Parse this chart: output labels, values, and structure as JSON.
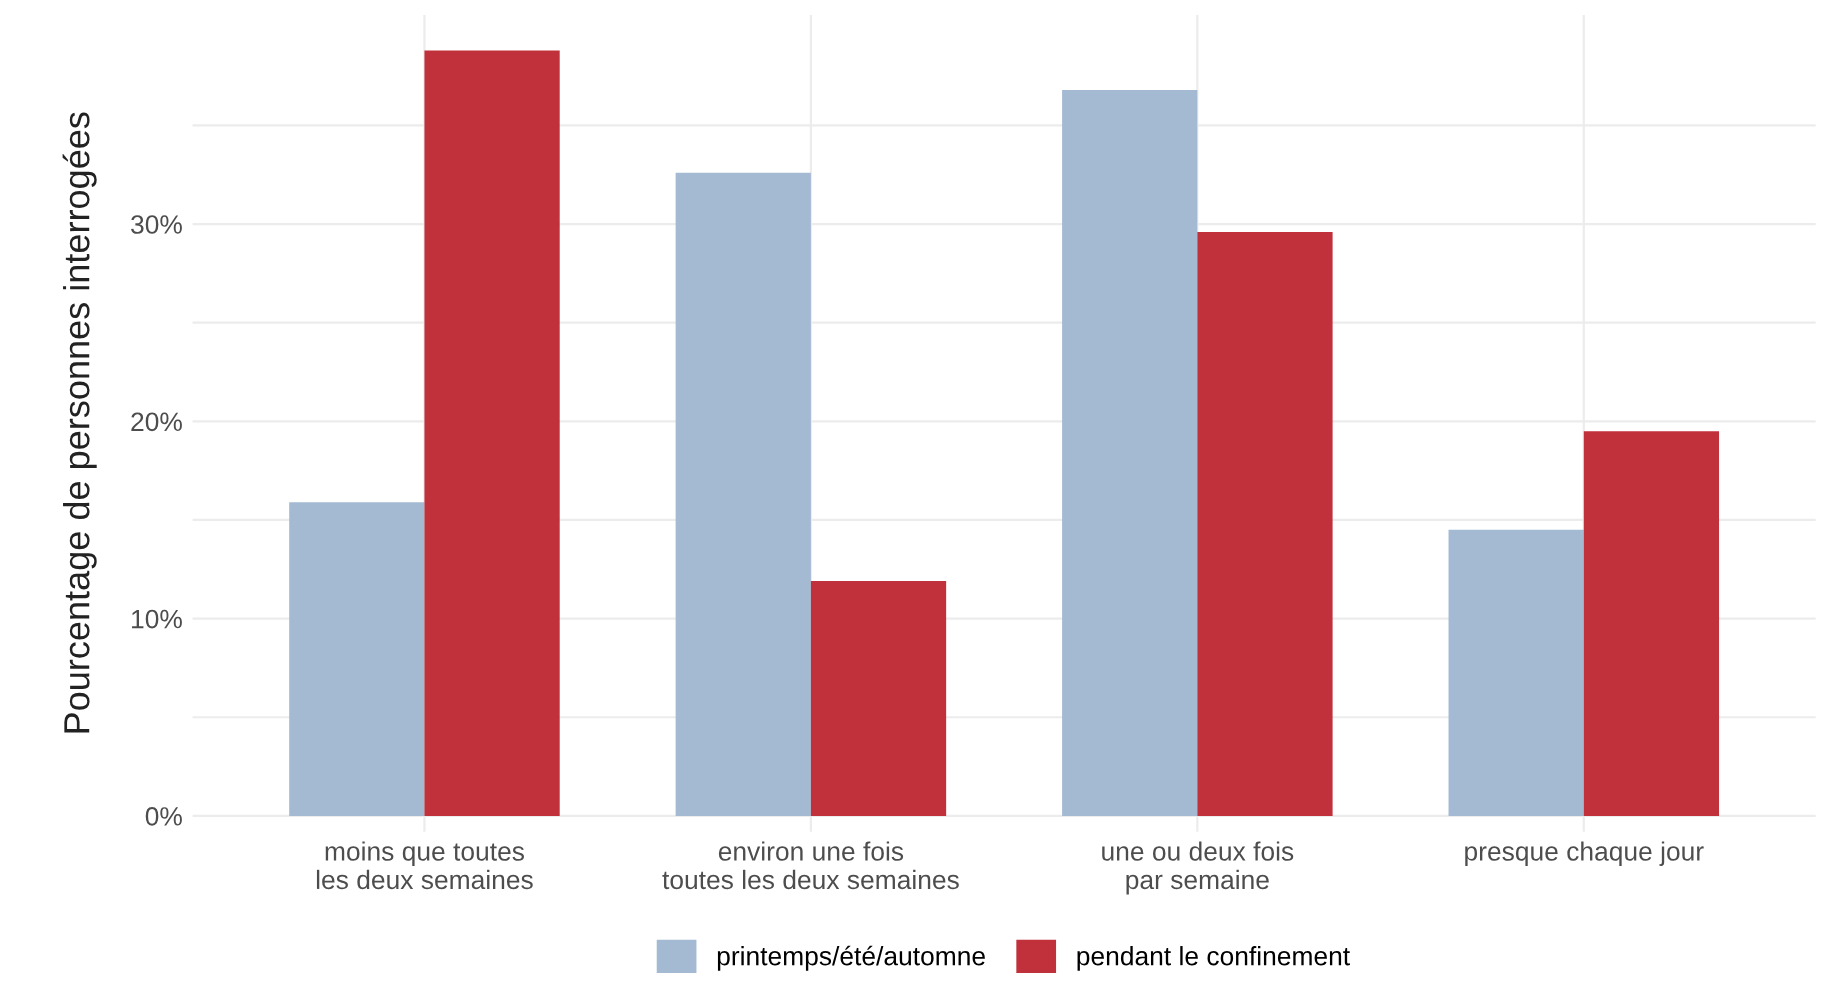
{
  "chart_data": {
    "type": "bar",
    "ylabel": "Pourcentage de personnes interrogées",
    "categories": [
      "moins que toutes\nles deux semaines",
      "environ une fois\ntoutes les deux semaines",
      "une ou deux fois\npar semaine",
      "presque chaque jour"
    ],
    "series": [
      {
        "name": "printemps/été/automne",
        "color": "#a4bad3",
        "values": [
          15.9,
          32.6,
          36.8,
          14.5
        ]
      },
      {
        "name": "pendant le confinement",
        "color": "#c0313b",
        "values": [
          38.8,
          11.9,
          29.6,
          19.5
        ]
      }
    ],
    "ylim": [
      -0.8,
      40.6
    ],
    "yticks": [
      {
        "value": 0,
        "label": "0%"
      },
      {
        "value": 5,
        "label": null
      },
      {
        "value": 10,
        "label": "10%"
      },
      {
        "value": 15,
        "label": null
      },
      {
        "value": 20,
        "label": "20%"
      },
      {
        "value": 25,
        "label": null
      },
      {
        "value": 30,
        "label": "30%"
      },
      {
        "value": 35,
        "label": null
      }
    ],
    "grid": true,
    "legend": "bottom"
  }
}
